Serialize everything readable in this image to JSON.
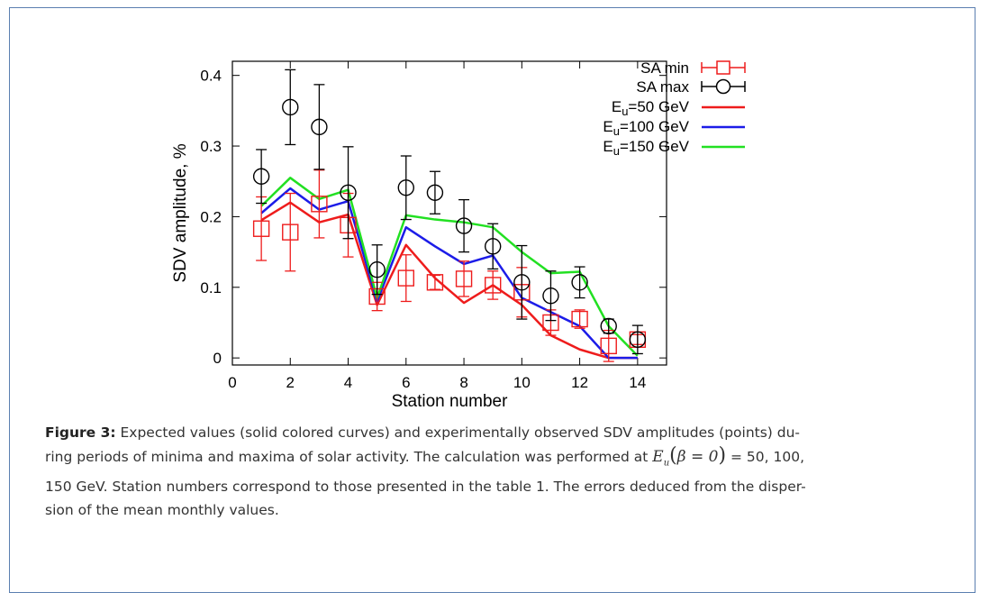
{
  "chart_data": {
    "type": "line",
    "xlabel": "Station number",
    "ylabel": "SDV amplitude, %",
    "xlim": [
      0,
      15
    ],
    "ylim": [
      -0.01,
      0.42
    ],
    "xticks": [
      0,
      2,
      4,
      6,
      8,
      10,
      12,
      14
    ],
    "yticks": [
      0,
      0.1,
      0.2,
      0.3,
      0.4
    ],
    "ytick_labels": [
      "0",
      "0.1",
      "0.2",
      "0.3",
      "0.4"
    ],
    "grid": false,
    "legend_position": "top-right, outside plot",
    "x": [
      1,
      2,
      3,
      4,
      5,
      6,
      7,
      8,
      9,
      10,
      11,
      12,
      13,
      14
    ],
    "series": [
      {
        "name": "SA min",
        "kind": "points",
        "marker": "square",
        "color": "#ee1c1c",
        "values": [
          0.183,
          0.178,
          0.218,
          0.188,
          0.087,
          0.113,
          0.107,
          0.112,
          0.103,
          0.093,
          0.05,
          0.055,
          0.017,
          0.026
        ],
        "errors": [
          0.045,
          0.055,
          0.048,
          0.045,
          0.02,
          0.033,
          0.01,
          0.025,
          0.02,
          0.035,
          0.018,
          0.013,
          0.022,
          0.007
        ]
      },
      {
        "name": "SA max",
        "kind": "points",
        "marker": "circle",
        "color": "#000000",
        "values": [
          0.257,
          0.355,
          0.327,
          0.234,
          0.125,
          0.241,
          0.234,
          0.187,
          0.158,
          0.107,
          0.088,
          0.107,
          0.045,
          0.026
        ],
        "errors": [
          0.038,
          0.053,
          0.06,
          0.065,
          0.035,
          0.045,
          0.03,
          0.037,
          0.032,
          0.052,
          0.035,
          0.022,
          0.01,
          0.02
        ]
      },
      {
        "name": "50 GeV",
        "kind": "line",
        "color": "#ee1c1c",
        "values": [
          0.195,
          0.22,
          0.192,
          0.203,
          0.075,
          0.16,
          0.113,
          0.078,
          0.103,
          0.075,
          0.032,
          0.012,
          0.0,
          0.0
        ]
      },
      {
        "name": "100 GeV",
        "kind": "line",
        "color": "#1c1ce8",
        "values": [
          0.205,
          0.24,
          0.21,
          0.222,
          0.08,
          0.185,
          0.158,
          0.133,
          0.145,
          0.085,
          0.065,
          0.045,
          0.0,
          0.0
        ]
      },
      {
        "name": "150 GeV",
        "kind": "line",
        "color": "#22e022",
        "values": [
          0.215,
          0.255,
          0.225,
          0.238,
          0.085,
          0.202,
          0.196,
          0.192,
          0.185,
          0.15,
          0.12,
          0.122,
          0.045,
          0.003
        ]
      }
    ]
  },
  "legend": {
    "sa_min": "SA min",
    "sa_max": "SA max",
    "e_prefix": "E",
    "e_sub": "u",
    "e50": "=50 GeV",
    "e100": "=100 GeV",
    "e150": "=150 GeV"
  },
  "caption": {
    "label": "Figure 3:",
    "text1": " Expected values (solid colored curves) and experimentally observed SDV amplitudes (points) du-",
    "text2": "ring periods of minima and maxima of solar activity. The calculation was performed at ",
    "formula_E": "E",
    "formula_u": "u",
    "formula_open": "(",
    "formula_beta": "β = 0",
    "formula_close": ")",
    "text3": " = 50, 100,",
    "text4": "150 GeV. Station numbers correspond to those presented in the table 1. The errors deduced from the disper-",
    "text5": "sion of the mean monthly values."
  }
}
